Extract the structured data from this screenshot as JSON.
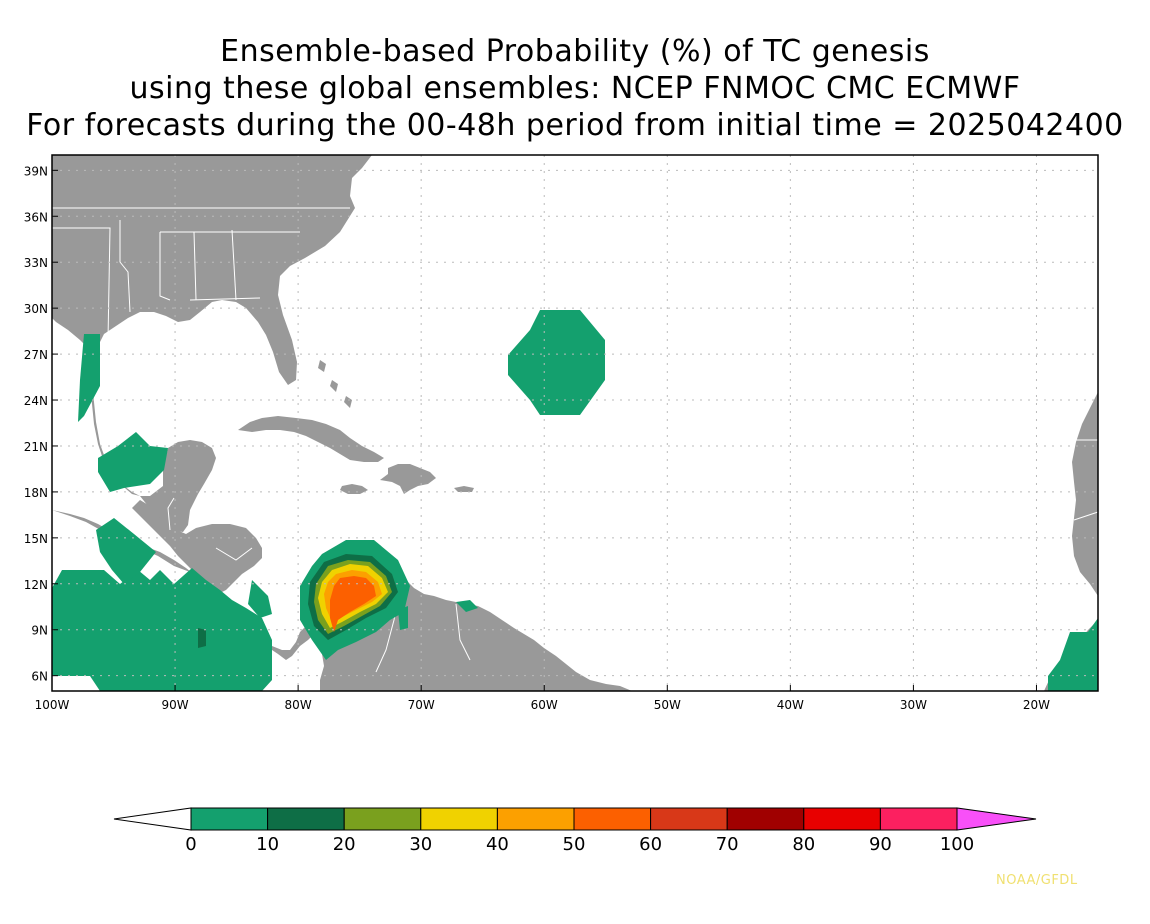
{
  "title": {
    "line1": "Ensemble-based Probability (%) of TC genesis",
    "line2": "using these global ensembles:   NCEP FNMOC CMC ECMWF",
    "line3": "For forecasts during the 00-48h period from initial time = 2025042400"
  },
  "map": {
    "lat_labels": [
      "39N",
      "36N",
      "33N",
      "30N",
      "27N",
      "24N",
      "21N",
      "18N",
      "15N",
      "12N",
      "9N",
      "6N"
    ],
    "lon_labels": [
      "100W",
      "90W",
      "80W",
      "70W",
      "60W",
      "50W",
      "40W",
      "30W",
      "20W"
    ],
    "extent": {
      "lon_min": -100,
      "lon_max": -15,
      "lat_min": 5,
      "lat_max": 40
    },
    "colors": {
      "land": "#999999",
      "ocean": "#ffffff",
      "border": "#ffffff",
      "grid": "#bbbbbb"
    }
  },
  "colorbar": {
    "tick_labels": [
      "0",
      "10",
      "20",
      "30",
      "40",
      "50",
      "60",
      "70",
      "80",
      "90",
      "100"
    ],
    "colors": [
      "#14a06e",
      "#0e6e46",
      "#7aa01e",
      "#f0d200",
      "#fca000",
      "#fc6000",
      "#d83818",
      "#a00000",
      "#e80000",
      "#fc2060"
    ],
    "under_color": "#ffffff",
    "over_color": "#f850f8"
  },
  "genesis_areas": [
    {
      "region": "Atlantic 27N 60W",
      "probability_min": 0,
      "probability_max": 10
    },
    {
      "region": "Southwest Caribbean",
      "probability_min": 0,
      "probability_max": 60
    },
    {
      "region": "Eastern Pacific",
      "probability_min": 0,
      "probability_max": 20
    },
    {
      "region": "Gulf of Mexico / Yucatan",
      "probability_min": 0,
      "probability_max": 10
    },
    {
      "region": "West Africa coast",
      "probability_min": 0,
      "probability_max": 10
    }
  ],
  "credit": {
    "text": "NOAA/GFDL",
    "color": "#f0e070"
  }
}
